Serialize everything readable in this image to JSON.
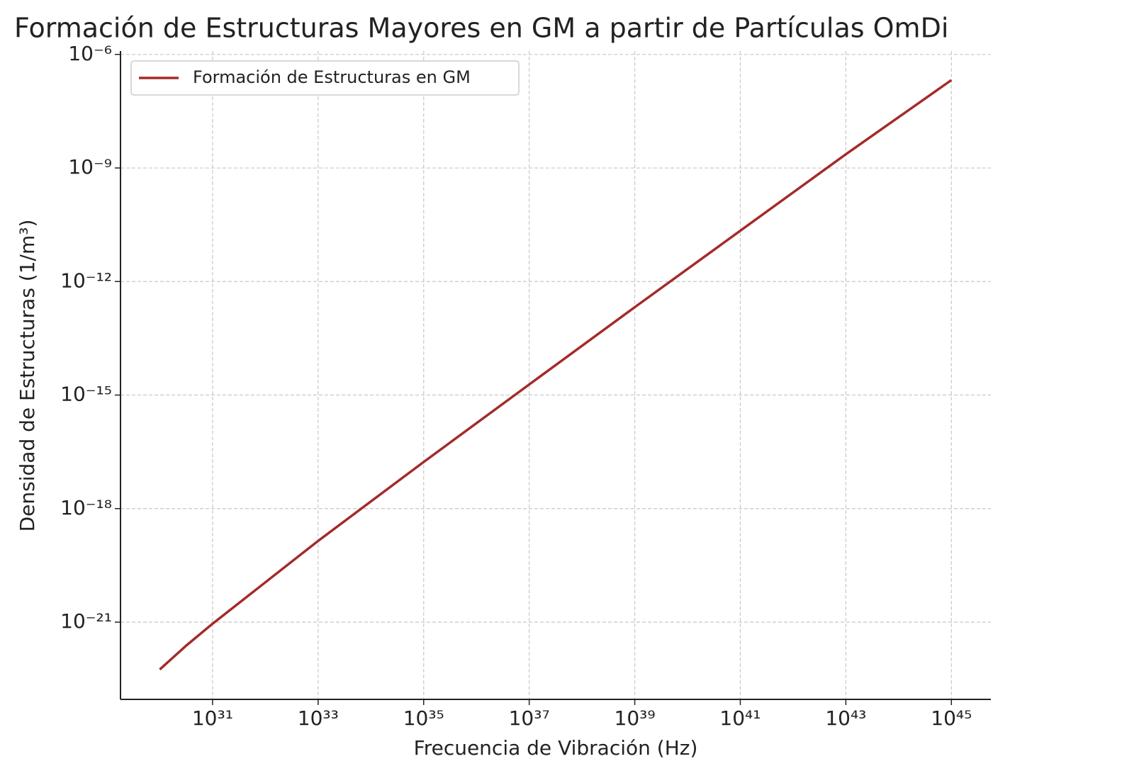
{
  "chart_data": {
    "type": "line",
    "title": "Formación de Estructuras Mayores en GM a partir de Partículas OmDi",
    "x_label": "Frecuencia de Vibración (Hz)",
    "y_label": "Densidad de Estructuras (1/m³)",
    "x_log": true,
    "y_log": true,
    "grid": true,
    "legend": "upper left",
    "x": [
      1e+30,
      3.16e+30,
      1e+31,
      1e+33,
      1e+35,
      1e+37,
      1e+39,
      1e+41,
      1e+43,
      1e+45
    ],
    "series": [
      {
        "name": "Formación de Estructuras en GM",
        "color": "#a52a2a",
        "values": [
          5.6e-23,
          2.4e-22,
          9.1e-22,
          1.4e-19,
          1.7e-17,
          1.9e-15,
          2.1e-13,
          2.2e-11,
          2.3e-09,
          2.1e-07
        ]
      }
    ],
    "xlim": [
      1.8e+29,
      5.6e+45
    ],
    "ylim": [
      9.1e-24,
      1.23e-06
    ],
    "xticks": [
      {
        "value": 1e+31,
        "label": "10³¹"
      },
      {
        "value": 1e+33,
        "label": "10³³"
      },
      {
        "value": 1e+35,
        "label": "10³⁵"
      },
      {
        "value": 1e+37,
        "label": "10³⁷"
      },
      {
        "value": 1e+39,
        "label": "10³⁹"
      },
      {
        "value": 1e+41,
        "label": "10⁴¹"
      },
      {
        "value": 1e+43,
        "label": "10⁴³"
      },
      {
        "value": 1e+45,
        "label": "10⁴⁵"
      }
    ],
    "yticks": [
      {
        "value": 1e-21,
        "label": "10⁻²¹"
      },
      {
        "value": 1e-18,
        "label": "10⁻¹⁸"
      },
      {
        "value": 1e-15,
        "label": "10⁻¹⁵"
      },
      {
        "value": 1e-12,
        "label": "10⁻¹²"
      },
      {
        "value": 1e-09,
        "label": "10⁻⁹"
      },
      {
        "value": 1e-06,
        "label": "10⁻⁶"
      }
    ]
  }
}
